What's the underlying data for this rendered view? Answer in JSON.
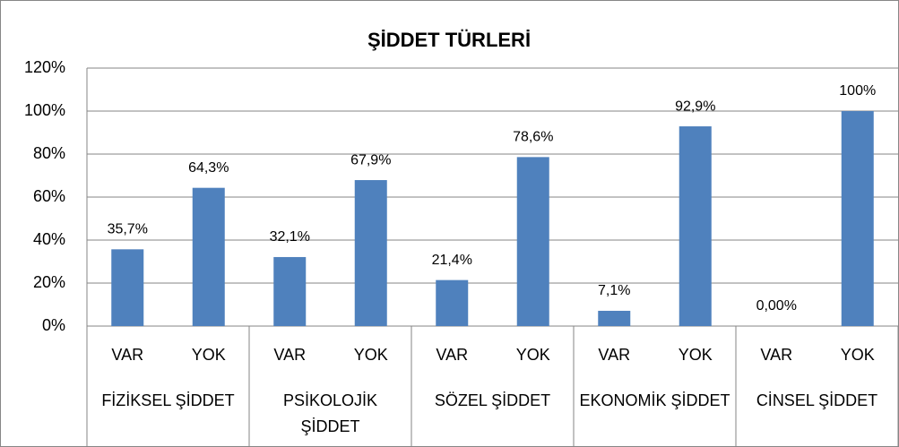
{
  "chart_data": {
    "type": "bar",
    "title": "ŞİDDET TÜRLERİ",
    "categories": [
      "VAR",
      "YOK",
      "VAR",
      "YOK",
      "VAR",
      "YOK",
      "VAR",
      "YOK",
      "VAR",
      "YOK"
    ],
    "groups": [
      "FİZİKSEL ŞİDDET",
      "PSİKOLOJİK ŞİDDET",
      "SÖZEL ŞİDDET",
      "EKONOMİK ŞİDDET",
      "CİNSEL ŞİDDET"
    ],
    "values": [
      35.7,
      64.3,
      32.1,
      67.9,
      21.4,
      78.6,
      7.1,
      92.9,
      0,
      100
    ],
    "value_labels": [
      "35,7%",
      "64,3%",
      "32,1%",
      "67,9%",
      "21,4%",
      "78,6%",
      "7,1%",
      "92,9%",
      "0,00%",
      "100%"
    ],
    "color": "#4f81bd",
    "ylim": [
      0,
      120
    ],
    "yticks": [
      {
        "value": 0,
        "label": "0%"
      },
      {
        "value": 20,
        "label": "20%"
      },
      {
        "value": 40,
        "label": "40%"
      },
      {
        "value": 60,
        "label": "60%"
      },
      {
        "value": 80,
        "label": "80%"
      },
      {
        "value": 100,
        "label": "100%"
      },
      {
        "value": 120,
        "label": "120%"
      }
    ],
    "grid": true
  }
}
